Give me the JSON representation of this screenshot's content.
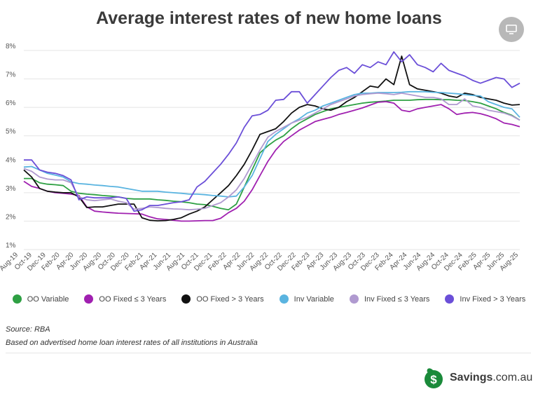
{
  "header": {
    "title": "Average interest rates of new home loans"
  },
  "chart_data": {
    "type": "line",
    "title": "Average interest rates of new home loans",
    "xlabel": "",
    "ylabel": "",
    "ylim": [
      1,
      8
    ],
    "yticks": [
      "1%",
      "2%",
      "3%",
      "4%",
      "5%",
      "6%",
      "7%",
      "8%"
    ],
    "grid": true,
    "legend_position": "bottom",
    "x_tick_labels": [
      "Aug-19",
      "Oct-19",
      "Dec-19",
      "Feb-20",
      "Apr-20",
      "Jun-20",
      "Aug-20",
      "Oct-20",
      "Dec-20",
      "Feb-21",
      "Apr-21",
      "Jun-21",
      "Aug-21",
      "Oct-21",
      "Dec-21",
      "Feb-22",
      "Apr-22",
      "Jun-22",
      "Aug-22",
      "Oct-22",
      "Dec-22",
      "Feb-23",
      "Apr-23",
      "Jun-23",
      "Aug-23",
      "Oct-23",
      "Dec-23",
      "Feb-24",
      "Apr-24",
      "Jun-24",
      "Aug-24",
      "Oct-24",
      "Dec-24",
      "Feb-25",
      "Apr-25",
      "Jun-25",
      "Aug-25"
    ],
    "series": [
      {
        "name": "OO Variable",
        "color": "#2ea043",
        "values": [
          3.5,
          3.5,
          3.35,
          3.3,
          3.28,
          3.25,
          3.05,
          2.98,
          2.95,
          2.93,
          2.9,
          2.88,
          2.85,
          2.8,
          2.78,
          2.78,
          2.78,
          2.75,
          2.73,
          2.7,
          2.68,
          2.65,
          2.6,
          2.58,
          2.52,
          2.45,
          2.4,
          2.6,
          3.2,
          3.8,
          4.4,
          4.65,
          4.85,
          5.0,
          5.25,
          5.45,
          5.6,
          5.75,
          5.85,
          5.95,
          6.0,
          6.05,
          6.1,
          6.15,
          6.18,
          6.2,
          6.22,
          6.25,
          6.25,
          6.25,
          6.27,
          6.28,
          6.28,
          6.27,
          6.27,
          6.25,
          6.24,
          6.2,
          6.15,
          6.05,
          5.95,
          5.82,
          5.72,
          5.55
        ]
      },
      {
        "name": "OO Fixed ≤ 3 Years",
        "color": "#a020b0",
        "values": [
          3.4,
          3.22,
          3.15,
          3.05,
          3.0,
          2.98,
          2.95,
          2.9,
          2.5,
          2.35,
          2.32,
          2.3,
          2.28,
          2.27,
          2.26,
          2.25,
          2.15,
          2.08,
          2.06,
          2.03,
          2.0,
          2.0,
          2.01,
          2.02,
          2.02,
          2.1,
          2.3,
          2.45,
          2.7,
          3.1,
          3.6,
          4.1,
          4.5,
          4.8,
          5.0,
          5.2,
          5.35,
          5.5,
          5.58,
          5.65,
          5.75,
          5.82,
          5.9,
          5.98,
          6.08,
          6.18,
          6.2,
          6.15,
          5.9,
          5.85,
          5.95,
          6.0,
          6.05,
          6.1,
          5.95,
          5.75,
          5.8,
          5.82,
          5.78,
          5.7,
          5.6,
          5.45,
          5.4,
          5.32
        ]
      },
      {
        "name": "OO Fixed > 3 Years",
        "color": "#111111",
        "values": [
          3.8,
          3.55,
          3.15,
          3.05,
          3.02,
          3.0,
          3.0,
          2.85,
          2.48,
          2.5,
          2.5,
          2.55,
          2.6,
          2.6,
          2.6,
          2.12,
          2.03,
          2.01,
          2.02,
          2.06,
          2.12,
          2.25,
          2.35,
          2.5,
          2.75,
          3.0,
          3.25,
          3.6,
          4.0,
          4.5,
          5.05,
          5.15,
          5.25,
          5.5,
          5.8,
          6.0,
          6.1,
          6.05,
          5.95,
          5.9,
          6.0,
          6.2,
          6.35,
          6.55,
          6.75,
          6.7,
          7.0,
          6.8,
          7.8,
          6.8,
          6.65,
          6.6,
          6.55,
          6.5,
          6.4,
          6.35,
          6.5,
          6.45,
          6.35,
          6.3,
          6.25,
          6.15,
          6.08,
          6.1
        ]
      },
      {
        "name": "Inv Variable",
        "color": "#5ab4e0",
        "values": [
          3.9,
          3.92,
          3.8,
          3.68,
          3.62,
          3.55,
          3.38,
          3.32,
          3.3,
          3.27,
          3.25,
          3.22,
          3.2,
          3.15,
          3.1,
          3.05,
          3.05,
          3.05,
          3.02,
          3.0,
          2.98,
          2.95,
          2.95,
          2.93,
          2.9,
          2.88,
          2.85,
          2.88,
          3.2,
          3.6,
          4.2,
          4.8,
          5.05,
          5.25,
          5.45,
          5.6,
          5.8,
          5.9,
          6.05,
          6.15,
          6.25,
          6.35,
          6.45,
          6.5,
          6.5,
          6.52,
          6.52,
          6.52,
          6.53,
          6.55,
          6.55,
          6.55,
          6.53,
          6.52,
          6.5,
          6.48,
          6.45,
          6.42,
          6.4,
          6.2,
          6.1,
          6.0,
          5.95,
          5.65
        ]
      },
      {
        "name": "Inv Fixed ≤ 3 Years",
        "color": "#b09ad0",
        "values": [
          3.85,
          3.75,
          3.55,
          3.48,
          3.45,
          3.45,
          3.35,
          2.85,
          2.75,
          2.72,
          2.75,
          2.78,
          2.7,
          2.65,
          2.42,
          2.45,
          2.5,
          2.48,
          2.45,
          2.43,
          2.42,
          2.4,
          2.42,
          2.45,
          2.55,
          2.65,
          2.85,
          3.1,
          3.5,
          4.0,
          4.5,
          4.95,
          5.15,
          5.3,
          5.45,
          5.55,
          5.65,
          5.8,
          5.95,
          6.1,
          6.2,
          6.3,
          6.4,
          6.45,
          6.48,
          6.5,
          6.48,
          6.45,
          6.5,
          6.45,
          6.4,
          6.35,
          6.35,
          6.3,
          6.1,
          6.1,
          6.3,
          6.05,
          6.0,
          5.9,
          5.85,
          5.8,
          5.7,
          5.55
        ]
      },
      {
        "name": "Inv Fixed > 3 Years",
        "color": "#6b4fd8",
        "values": [
          4.15,
          4.15,
          3.8,
          3.72,
          3.68,
          3.6,
          3.45,
          2.75,
          2.85,
          2.82,
          2.82,
          2.82,
          2.85,
          2.8,
          2.35,
          2.4,
          2.55,
          2.55,
          2.6,
          2.65,
          2.68,
          2.75,
          3.2,
          3.4,
          3.7,
          4.0,
          4.35,
          4.75,
          5.3,
          5.7,
          5.75,
          5.9,
          6.25,
          6.28,
          6.55,
          6.55,
          6.15,
          6.45,
          6.75,
          7.05,
          7.3,
          7.4,
          7.2,
          7.5,
          7.4,
          7.6,
          7.5,
          7.95,
          7.6,
          7.85,
          7.5,
          7.4,
          7.25,
          7.55,
          7.3,
          7.2,
          7.1,
          6.95,
          6.85,
          6.95,
          7.05,
          7.0,
          6.7,
          6.85
        ]
      }
    ]
  },
  "source": {
    "text": "Source: RBA"
  },
  "note": {
    "text": "Based on advertised home loan interest rates of all institutions in Australia"
  },
  "brand": {
    "name_bold": "Savings",
    "name_rest": ".com.au",
    "logo_glyph": "$",
    "logo_color": "#1a8a3a"
  },
  "icons": {
    "screen_button": "monitor-icon"
  }
}
